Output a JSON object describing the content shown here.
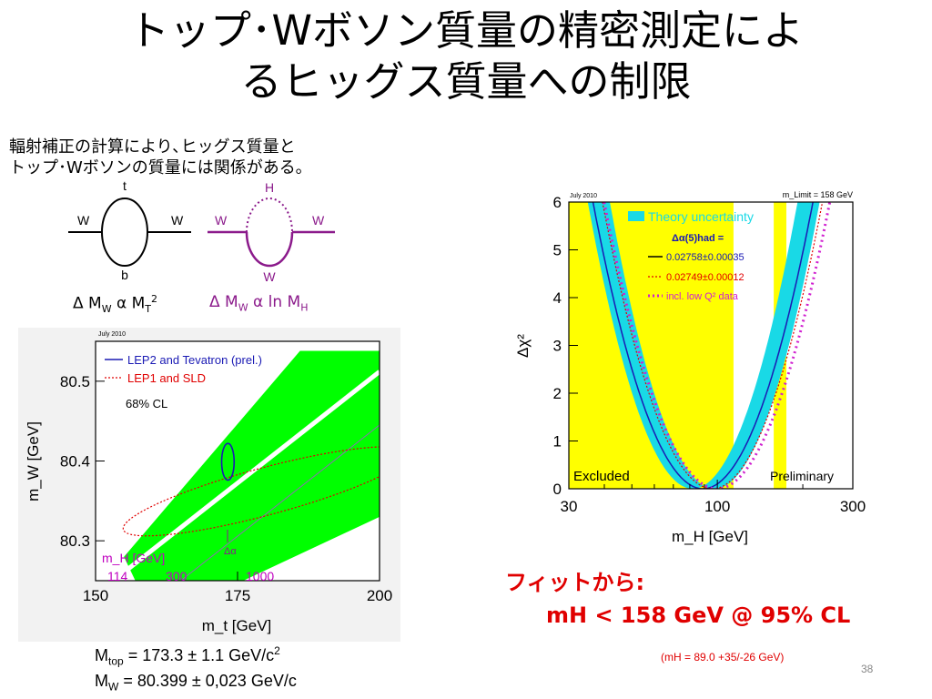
{
  "title": {
    "line1": "トップ･Wボソン質量の精密測定によ",
    "line2": "るヒッグス質量への制限"
  },
  "intro": {
    "line1": "輻射補正の計算により､ヒッグス質量と",
    "line2": "トップ･Wボソンの質量には関係がある｡"
  },
  "diagrams": {
    "left": {
      "top": "t",
      "bottom": "b",
      "in": "W",
      "out": "W",
      "color": "#000000"
    },
    "right": {
      "top": "H",
      "bottom": "W",
      "in": "W",
      "out": "W",
      "color": "#8b1a8b"
    },
    "eq_left": {
      "delta": "Δ M",
      "sub1": "W",
      "alpha": " α M",
      "sub2": "T",
      "sup": "2"
    },
    "eq_right": {
      "delta": "Δ M",
      "sub1": "W",
      "alpha": " α ln M",
      "sub2": "H"
    }
  },
  "chart_data": [
    {
      "type": "area",
      "date_label": "July 2010",
      "xlabel": "m_t [GeV]",
      "ylabel": "m_W [GeV]",
      "xlim": [
        150,
        200
      ],
      "ylim": [
        80.25,
        80.55
      ],
      "x_ticks": [
        "150",
        "175",
        "200"
      ],
      "y_ticks": [
        "80.3",
        "80.4",
        "80.5"
      ],
      "legend": [
        "LEP2 and Tevatron (prel.)",
        "LEP1 and SLD",
        "68% CL"
      ],
      "legend_colors": [
        "#1a1ab4",
        "#e00000",
        "#000000"
      ],
      "band_label": "m_H [GeV]",
      "band_values": [
        "114",
        "300",
        "1000"
      ],
      "delta_alpha_label": "Δα",
      "direct_ellipse": {
        "center": [
          173.3,
          80.399
        ],
        "semi_x": 1.1,
        "semi_y": 0.023
      }
    },
    {
      "type": "line",
      "date_label": "July 2010",
      "top_right_label": "m_Limit = 158 GeV",
      "xlabel": "m_H [GeV]",
      "ylabel": "Δχ²",
      "xscale": "log",
      "xlim": [
        30,
        300
      ],
      "ylim": [
        0,
        6
      ],
      "x_ticks": [
        "30",
        "100",
        "300"
      ],
      "y_ticks": [
        "0",
        "1",
        "2",
        "3",
        "4",
        "5",
        "6"
      ],
      "excluded_label": "Excluded",
      "preliminary_label": "Preliminary",
      "excluded_regions": [
        [
          30,
          114
        ],
        [
          158,
          175
        ]
      ],
      "legend": {
        "theory": "Theory uncertainty",
        "dalpha_title": "Δα(5)had =",
        "entries": [
          {
            "name": "0.02758±0.00035",
            "color": "#1a1ab4"
          },
          {
            "name": "0.02749±0.00012",
            "color": "#e00000"
          },
          {
            "name": "incl. low Q² data",
            "color": "#d020d0"
          }
        ]
      },
      "minimum_x": 89
    }
  ],
  "fit": {
    "line1": "フィットから:",
    "line2": "mH < 158 GeV @ 95% CL",
    "note": "(mH = 89.0 +35/-26 GeV)"
  },
  "masses": {
    "mtop_label": "M",
    "mtop_sub": "top",
    "mtop_value": " = 173.3 ± 1.1 GeV/c",
    "mtop_sup": "2",
    "mw_label": "M",
    "mw_sub": "W",
    "mw_value": " = 80.399 ± 0,023 GeV/c"
  },
  "page_number": "38",
  "colors": {
    "fit": "#e00000",
    "band_green": "#00ff00",
    "yellow": "#ffff00",
    "cyan": "#19d9e6"
  }
}
